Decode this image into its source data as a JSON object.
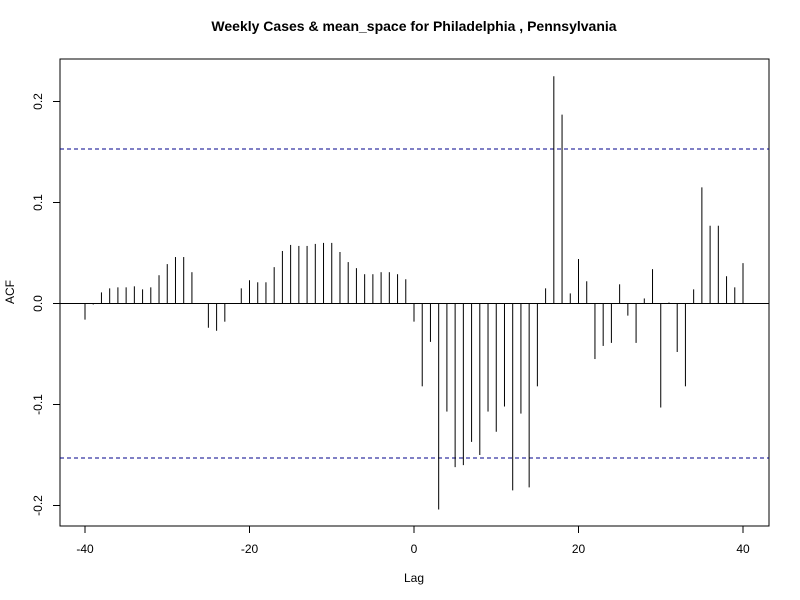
{
  "chart_data": {
    "type": "bar",
    "title": "Weekly Cases & mean_space for Philadelphia , Pennsylvania",
    "xlabel": "Lag",
    "ylabel": "ACF",
    "xlim": [
      -40,
      40
    ],
    "ylim": [
      -0.2,
      0.225
    ],
    "x_ticks": [
      -40,
      -20,
      0,
      20,
      40
    ],
    "y_ticks": [
      -0.2,
      -0.1,
      0.0,
      0.1,
      0.2
    ],
    "x_tick_labels": [
      "-40",
      "-20",
      "0",
      "20",
      "40"
    ],
    "y_tick_labels": [
      "-0.2",
      "-0.1",
      "0.0",
      "0.1",
      "0.2"
    ],
    "confidence_bound": 0.153,
    "confidence_color": "#00008b",
    "bar_color": "#000000",
    "grid": false,
    "lags": [
      -40,
      -39,
      -38,
      -37,
      -36,
      -35,
      -34,
      -33,
      -32,
      -31,
      -30,
      -29,
      -28,
      -27,
      -26,
      -25,
      -24,
      -23,
      -22,
      -21,
      -20,
      -19,
      -18,
      -17,
      -16,
      -15,
      -14,
      -13,
      -12,
      -11,
      -10,
      -9,
      -8,
      -7,
      -6,
      -5,
      -4,
      -3,
      -2,
      -1,
      0,
      1,
      2,
      3,
      4,
      5,
      6,
      7,
      8,
      9,
      10,
      11,
      12,
      13,
      14,
      15,
      16,
      17,
      18,
      19,
      20,
      21,
      22,
      23,
      24,
      25,
      26,
      27,
      28,
      29,
      30,
      31,
      32,
      33,
      34,
      35,
      36,
      37,
      38,
      39,
      40
    ],
    "values": [
      -0.016,
      -0.001,
      0.011,
      0.015,
      0.016,
      0.016,
      0.017,
      0.014,
      0.016,
      0.028,
      0.039,
      0.046,
      0.046,
      0.031,
      0.0,
      -0.024,
      -0.027,
      -0.018,
      0.0,
      0.015,
      0.023,
      0.021,
      0.021,
      0.036,
      0.052,
      0.058,
      0.057,
      0.057,
      0.059,
      0.06,
      0.06,
      0.051,
      0.041,
      0.035,
      0.029,
      0.029,
      0.031,
      0.031,
      0.029,
      0.024,
      -0.018,
      -0.082,
      -0.038,
      -0.204,
      -0.107,
      -0.162,
      -0.16,
      -0.137,
      -0.15,
      -0.107,
      -0.127,
      -0.102,
      -0.185,
      -0.109,
      -0.182,
      -0.082,
      0.015,
      0.225,
      0.187,
      0.01,
      0.044,
      0.022,
      -0.055,
      -0.042,
      -0.039,
      0.019,
      -0.012,
      -0.039,
      0.005,
      0.034,
      -0.103,
      0.001,
      -0.048,
      -0.082,
      0.014,
      0.115,
      0.077,
      0.077,
      0.027,
      0.016,
      0.04
    ]
  }
}
